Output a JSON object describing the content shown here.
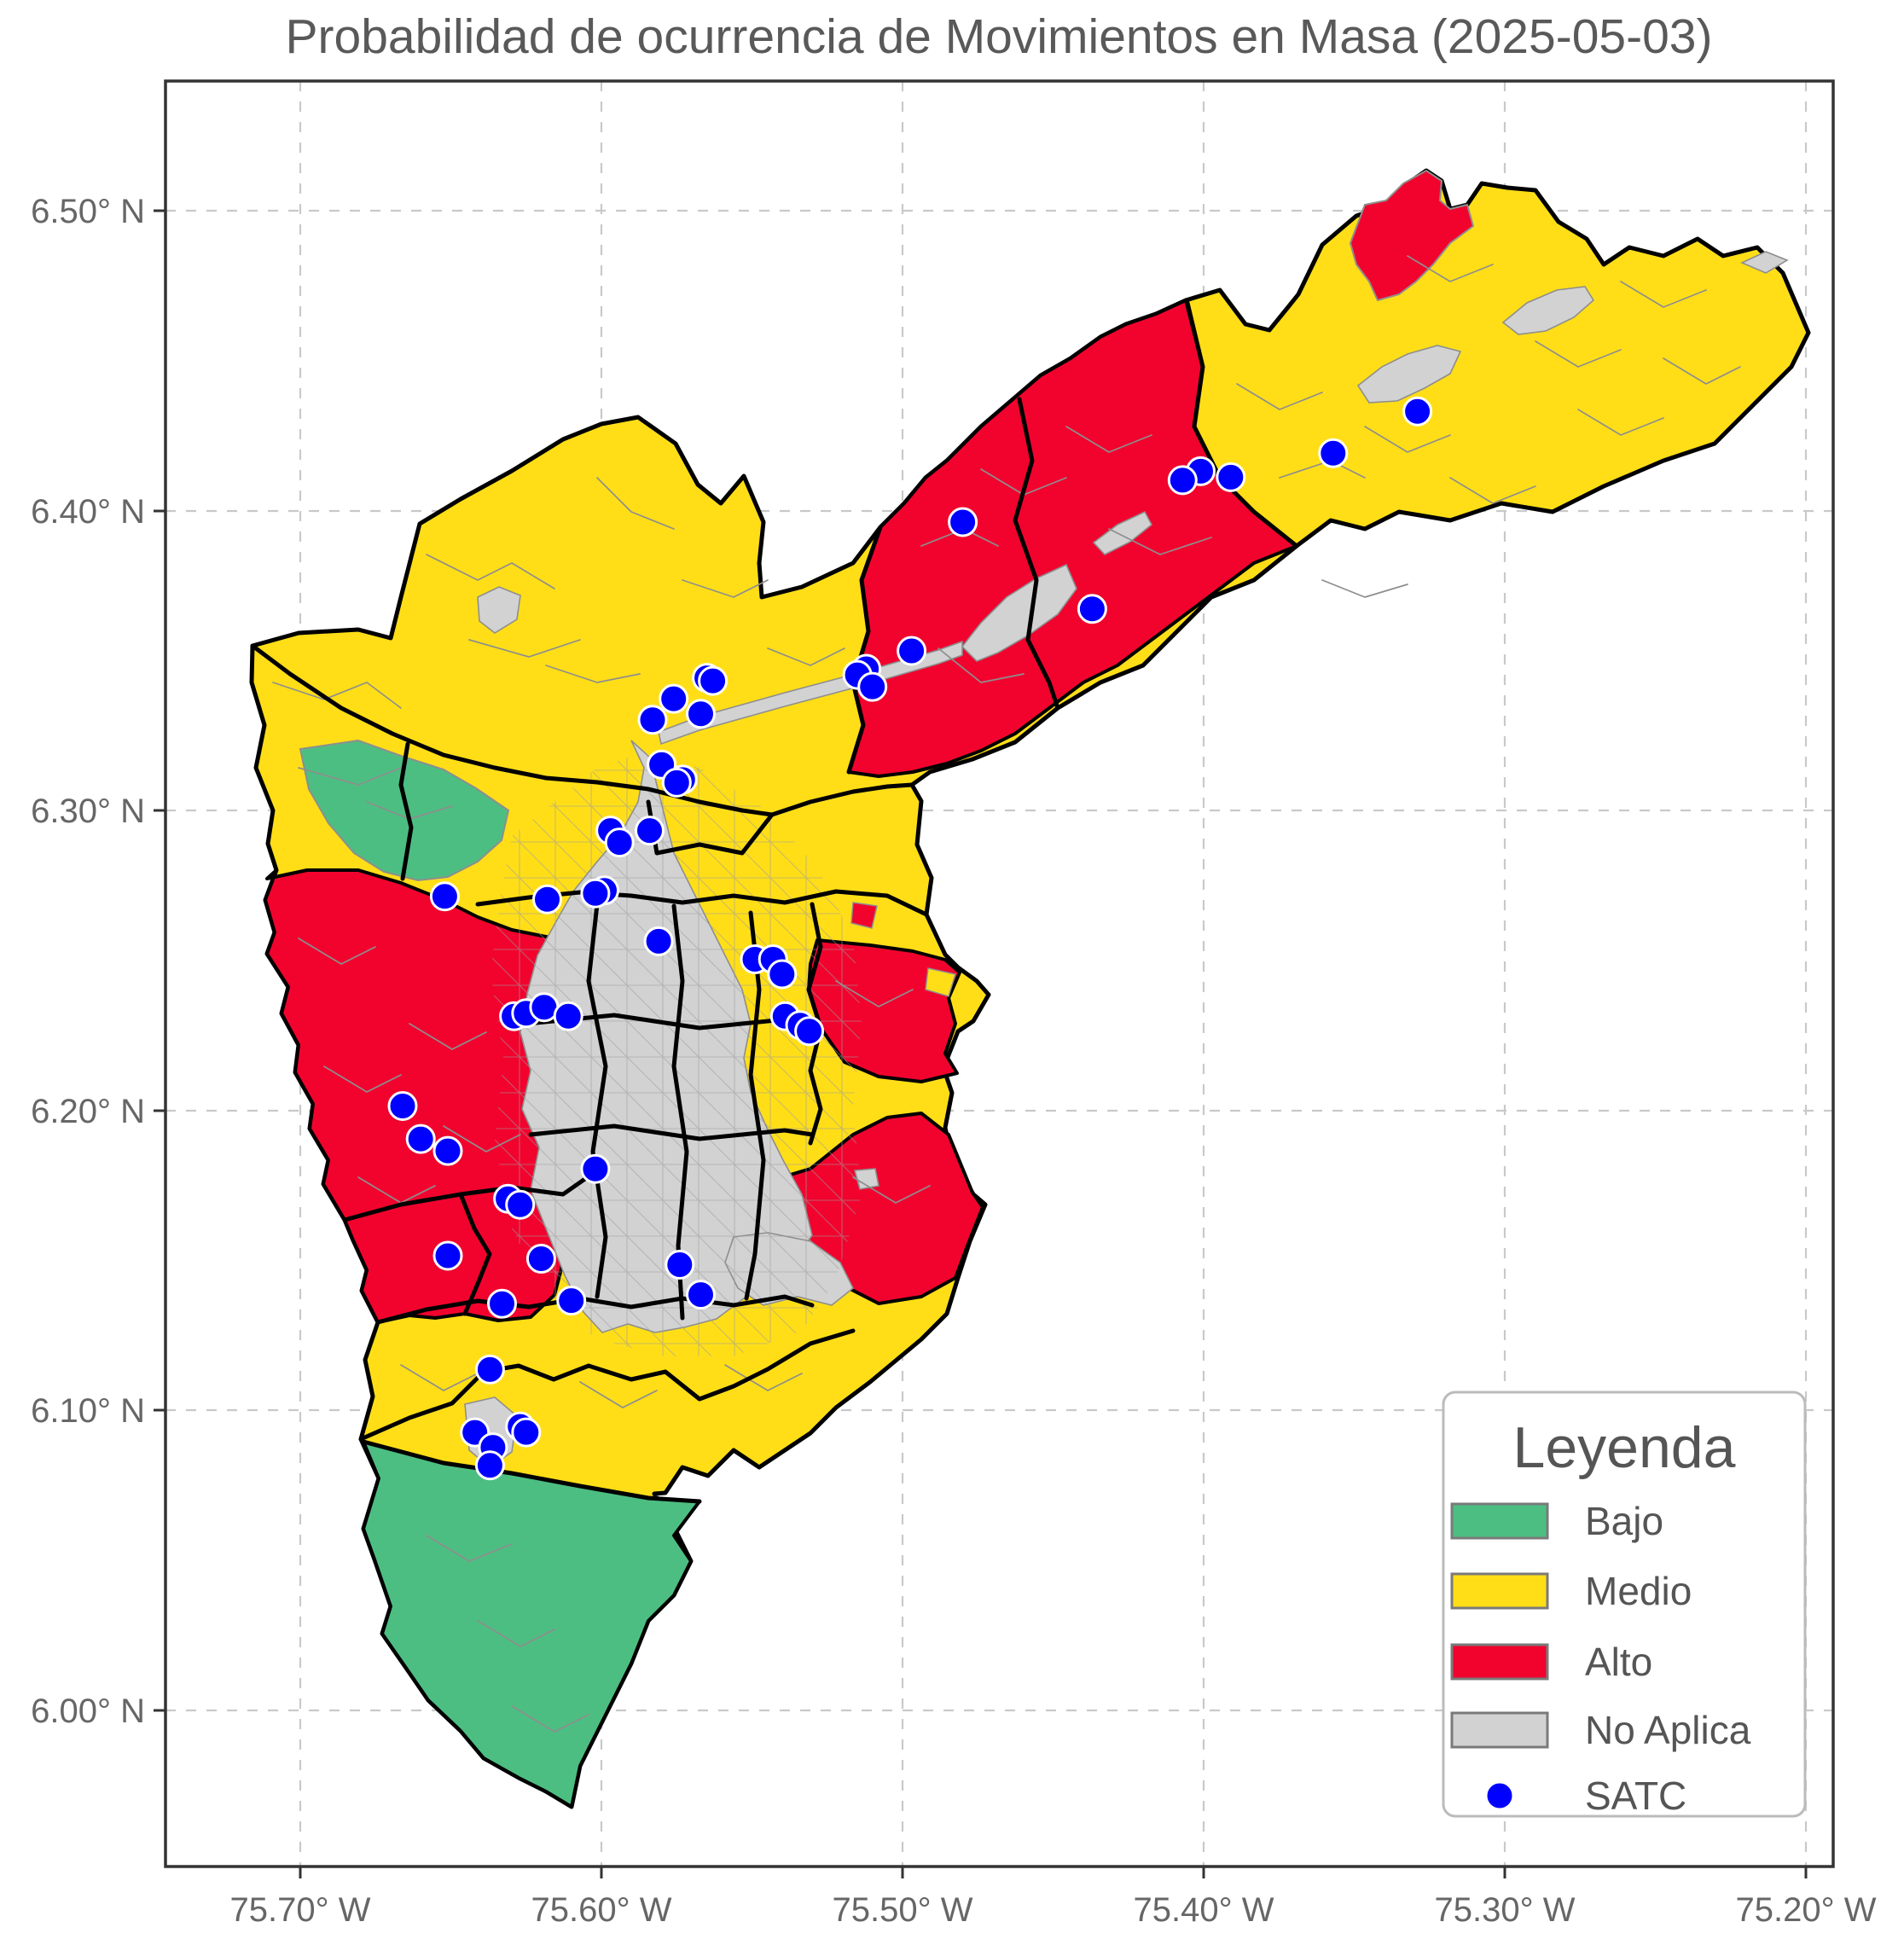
{
  "title": "Probabilidad de ocurrencia de Movimientos en Masa (2025-05-03)",
  "legend": {
    "title": "Leyenda",
    "items": [
      {
        "label": "Bajo",
        "color": "#4DBE82",
        "type": "patch"
      },
      {
        "label": "Medio",
        "color": "#FFDE17",
        "type": "patch"
      },
      {
        "label": "Alto",
        "color": "#F1032E",
        "type": "patch"
      },
      {
        "label": "No Aplica",
        "color": "#D2D2D2",
        "type": "patch"
      },
      {
        "label": "SATC",
        "color": "#0000FF",
        "type": "point"
      }
    ]
  },
  "axes": {
    "x": {
      "ticks": [
        {
          "label": "75.70° W",
          "value": -75.7
        },
        {
          "label": "75.60° W",
          "value": -75.6
        },
        {
          "label": "75.50° W",
          "value": -75.5
        },
        {
          "label": "75.40° W",
          "value": -75.4
        },
        {
          "label": "75.30° W",
          "value": -75.3
        },
        {
          "label": "75.20° W",
          "value": -75.2
        }
      ]
    },
    "y": {
      "ticks": [
        {
          "label": "6.50° N",
          "value": 6.5
        },
        {
          "label": "6.40° N",
          "value": 6.4
        },
        {
          "label": "6.30° N",
          "value": 6.3
        },
        {
          "label": "6.20° N",
          "value": 6.2
        },
        {
          "label": "6.10° N",
          "value": 6.1
        },
        {
          "label": "6.00° N",
          "value": 6.0
        }
      ]
    }
  },
  "chart_data": {
    "type": "choropleth-map",
    "title": "Probabilidad de ocurrencia de Movimientos en Masa (2025-05-03)",
    "categories": [
      "Bajo",
      "Medio",
      "Alto",
      "No Aplica"
    ],
    "colors": {
      "Bajo": "#4DBE82",
      "Medio": "#FFDE17",
      "Alto": "#F1032E",
      "No Aplica": "#D2D2D2",
      "SATC": "#0000FF"
    },
    "extent": {
      "lon": [
        -75.745,
        -75.191
      ],
      "lat": [
        5.948,
        6.543
      ]
    },
    "grid": true,
    "legend_position": "lower right",
    "zones": [
      {
        "id": "base-valley",
        "level": "Medio"
      },
      {
        "id": "southwest-tip",
        "level": "Bajo"
      },
      {
        "id": "west-center-patch",
        "level": "Bajo"
      },
      {
        "id": "west-uplands",
        "level": "Alto"
      },
      {
        "id": "northeast-band",
        "level": "Alto"
      },
      {
        "id": "northeast-top-patch",
        "level": "Alto"
      },
      {
        "id": "east-upper-patch",
        "level": "Alto"
      },
      {
        "id": "east-lower-patch",
        "level": "Alto"
      },
      {
        "id": "urban-core-river",
        "level": "No Aplica"
      }
    ],
    "satc_points": [
      {
        "lon": -75.329,
        "lat": 6.433
      },
      {
        "lon": -75.357,
        "lat": 6.419
      },
      {
        "lon": -75.391,
        "lat": 6.411
      },
      {
        "lon": -75.401,
        "lat": 6.413
      },
      {
        "lon": -75.407,
        "lat": 6.41
      },
      {
        "lon": -75.437,
        "lat": 6.367
      },
      {
        "lon": -75.48,
        "lat": 6.396
      },
      {
        "lon": -75.565,
        "lat": 6.344
      },
      {
        "lon": -75.563,
        "lat": 6.343
      },
      {
        "lon": -75.576,
        "lat": 6.337
      },
      {
        "lon": -75.567,
        "lat": 6.332
      },
      {
        "lon": -75.583,
        "lat": 6.33
      },
      {
        "lon": -75.58,
        "lat": 6.315
      },
      {
        "lon": -75.573,
        "lat": 6.31
      },
      {
        "lon": -75.575,
        "lat": 6.309
      },
      {
        "lon": -75.512,
        "lat": 6.347
      },
      {
        "lon": -75.515,
        "lat": 6.345
      },
      {
        "lon": -75.51,
        "lat": 6.341
      },
      {
        "lon": -75.497,
        "lat": 6.353
      },
      {
        "lon": -75.597,
        "lat": 6.293
      },
      {
        "lon": -75.584,
        "lat": 6.293
      },
      {
        "lon": -75.594,
        "lat": 6.289
      },
      {
        "lon": -75.599,
        "lat": 6.273
      },
      {
        "lon": -75.602,
        "lat": 6.272
      },
      {
        "lon": -75.618,
        "lat": 6.27
      },
      {
        "lon": -75.581,
        "lat": 6.256
      },
      {
        "lon": -75.652,
        "lat": 6.271
      },
      {
        "lon": -75.549,
        "lat": 6.25
      },
      {
        "lon": -75.543,
        "lat": 6.25
      },
      {
        "lon": -75.54,
        "lat": 6.245
      },
      {
        "lon": -75.539,
        "lat": 6.231
      },
      {
        "lon": -75.534,
        "lat": 6.228
      },
      {
        "lon": -75.531,
        "lat": 6.226
      },
      {
        "lon": -75.629,
        "lat": 6.231
      },
      {
        "lon": -75.625,
        "lat": 6.232
      },
      {
        "lon": -75.619,
        "lat": 6.234
      },
      {
        "lon": -75.611,
        "lat": 6.231
      },
      {
        "lon": -75.666,
        "lat": 6.201
      },
      {
        "lon": -75.66,
        "lat": 6.19
      },
      {
        "lon": -75.651,
        "lat": 6.186
      },
      {
        "lon": -75.602,
        "lat": 6.18
      },
      {
        "lon": -75.631,
        "lat": 6.17
      },
      {
        "lon": -75.627,
        "lat": 6.168
      },
      {
        "lon": -75.651,
        "lat": 6.151
      },
      {
        "lon": -75.62,
        "lat": 6.15
      },
      {
        "lon": -75.574,
        "lat": 6.148
      },
      {
        "lon": -75.633,
        "lat": 6.135
      },
      {
        "lon": -75.61,
        "lat": 6.136
      },
      {
        "lon": -75.567,
        "lat": 6.138
      },
      {
        "lon": -75.637,
        "lat": 6.113
      },
      {
        "lon": -75.642,
        "lat": 6.092
      },
      {
        "lon": -75.627,
        "lat": 6.094
      },
      {
        "lon": -75.625,
        "lat": 6.092
      },
      {
        "lon": -75.636,
        "lat": 6.087
      },
      {
        "lon": -75.637,
        "lat": 6.081
      }
    ]
  }
}
